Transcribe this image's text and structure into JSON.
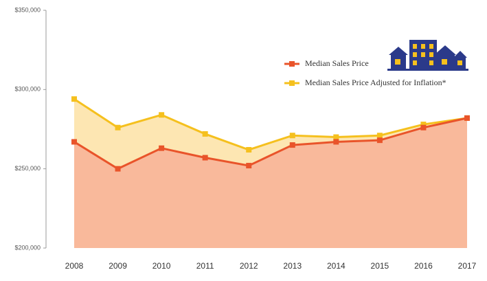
{
  "chart_data": {
    "type": "area",
    "categories": [
      "2008",
      "2009",
      "2010",
      "2011",
      "2012",
      "2013",
      "2014",
      "2015",
      "2016",
      "2017"
    ],
    "series": [
      {
        "name": "Median Sales Price Adjusted for Inflation*",
        "color": "#f5c01e",
        "fill": "#fde6b2",
        "values": [
          294000,
          276000,
          284000,
          272000,
          262000,
          271000,
          270000,
          271000,
          278000,
          282000
        ]
      },
      {
        "name": "Median Sales Price",
        "color": "#e9542a",
        "fill": "#f9b99b",
        "values": [
          267000,
          250000,
          263000,
          257000,
          252000,
          265000,
          267000,
          268000,
          276000,
          282000
        ]
      }
    ],
    "ylim": [
      200000,
      350000
    ],
    "yticks": [
      {
        "value": 200000,
        "label": "$200,000"
      },
      {
        "value": 250000,
        "label": "$250,000"
      },
      {
        "value": 300000,
        "label": "$300,000"
      },
      {
        "value": 350000,
        "label": "$350,000"
      }
    ],
    "legend": "top-right"
  }
}
